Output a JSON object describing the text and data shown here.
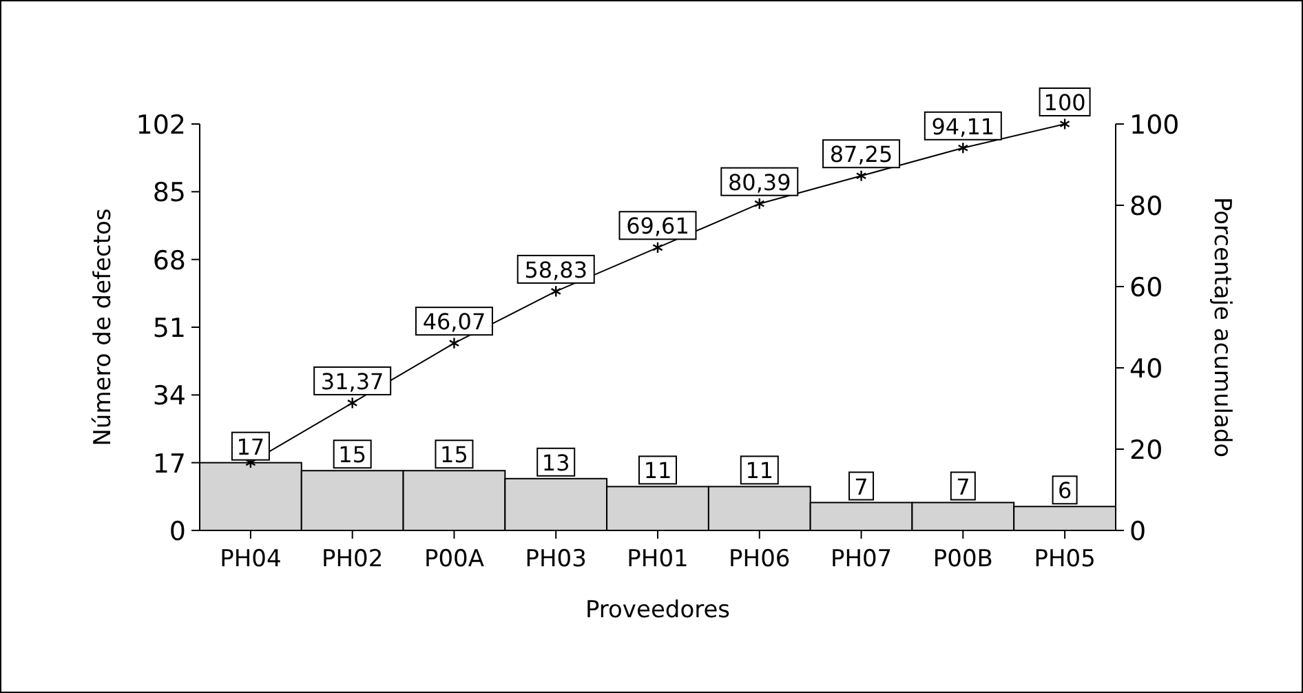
{
  "chart_data": {
    "type": "bar",
    "xlabel": "Proveedores",
    "ylabel": "Número de defectos",
    "y2label": "Porcentaje acumulado",
    "categories": [
      "PH04",
      "PH02",
      "P00A",
      "PH03",
      "PH01",
      "PH06",
      "PH07",
      "P00B",
      "PH05"
    ],
    "ylim": [
      0,
      102
    ],
    "yticks": [
      0,
      17,
      34,
      51,
      68,
      85,
      102
    ],
    "y2lim": [
      0,
      100
    ],
    "y2ticks": [
      0,
      20,
      40,
      60,
      80,
      100
    ],
    "grid": false,
    "series": [
      {
        "color": "#d4d4d4",
        "values": [
          17,
          15,
          15,
          13,
          11,
          11,
          7,
          7,
          6
        ],
        "value_labels": [
          "17",
          "15",
          "15",
          "13",
          "11",
          "11",
          "7",
          "7",
          "6"
        ]
      },
      {
        "type": "line",
        "axis": "y2",
        "color": "#000000",
        "marker": "cross",
        "line_style": "solid",
        "values": [
          16.7,
          31.37,
          46.07,
          58.83,
          69.61,
          80.39,
          87.25,
          94.11,
          100
        ],
        "value_labels": [
          null,
          "31,37",
          "46,07",
          "58,83",
          "69,61",
          "80,39",
          "87,25",
          "94,11",
          "100"
        ]
      }
    ]
  }
}
